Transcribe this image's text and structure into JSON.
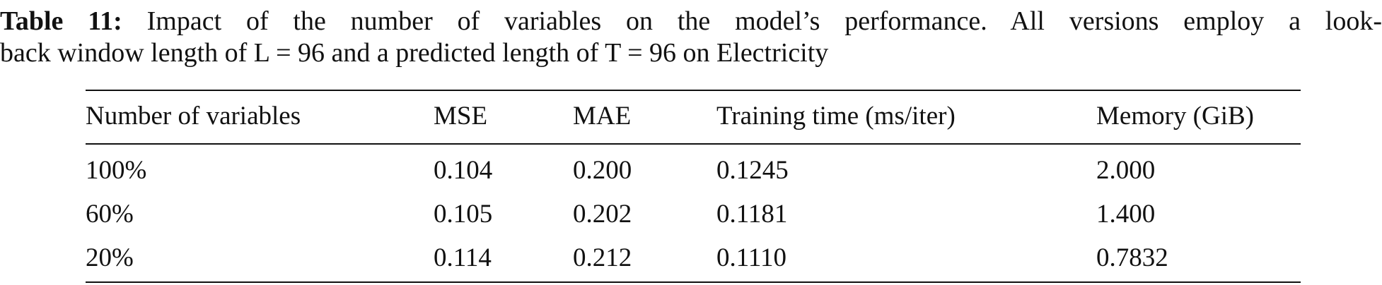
{
  "caption": {
    "label": "Table 11:",
    "line_1": "Impact of the number of variables on the model’s performance. All versions employ a look-",
    "line_2": "back window length of L = 96 and a predicted length of T = 96 on Electricity"
  },
  "table": {
    "header": [
      "Number of variables",
      "MSE",
      "MAE",
      "Training time (ms/iter)",
      "Memory (GiB)"
    ],
    "rows": [
      [
        "100%",
        "0.104",
        "0.200",
        "0.1245",
        "2.000"
      ],
      [
        "60%",
        "0.105",
        "0.202",
        "0.1181",
        "1.400"
      ],
      [
        "20%",
        "0.114",
        "0.212",
        "0.1110",
        "0.7832"
      ]
    ]
  }
}
